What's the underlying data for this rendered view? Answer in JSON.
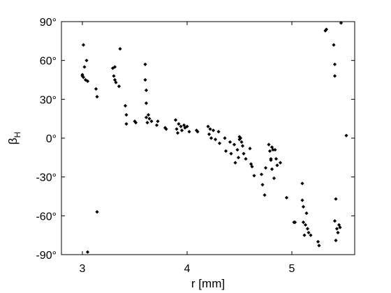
{
  "chart_data": {
    "type": "scatter",
    "title": "",
    "xlabel": "r [mm]",
    "ylabel": "β",
    "ylabel_subscript": "H",
    "xlim": [
      2.8,
      5.6
    ],
    "ylim": [
      -90,
      90
    ],
    "xticks": [
      3,
      4,
      5
    ],
    "xtick_labels": [
      "3",
      "4",
      "5"
    ],
    "yticks": [
      90,
      60,
      30,
      0,
      -30,
      -60,
      -90
    ],
    "ytick_labels": [
      "90°",
      "60°",
      "30°",
      "0°",
      "-30°",
      "-60°",
      "-90°"
    ],
    "grid": false,
    "marker": "diamond",
    "marker_color": "#000000",
    "series": [
      {
        "x": [
          3.0,
          3.0,
          3.01,
          3.01,
          3.02,
          3.03,
          3.04,
          3.05,
          3.13,
          3.14,
          3.14,
          3.05,
          3.29,
          3.3,
          3.31,
          3.31,
          3.32,
          3.35,
          3.36,
          3.41,
          3.42,
          3.42,
          3.5,
          3.51,
          3.6,
          3.6,
          3.61,
          3.61,
          3.61,
          3.62,
          3.63,
          3.64,
          3.66,
          3.71,
          3.72,
          3.79,
          3.8,
          3.89,
          3.9,
          3.91,
          3.92,
          3.94,
          3.95,
          3.97,
          3.98,
          4.0,
          4.02,
          4.09,
          4.1,
          4.2,
          4.21,
          4.22,
          4.23,
          4.25,
          4.27,
          4.3,
          4.31,
          4.36,
          4.37,
          4.41,
          4.42,
          4.45,
          4.46,
          4.48,
          4.49,
          4.5,
          4.5,
          4.51,
          4.52,
          4.53,
          4.54,
          4.56,
          4.6,
          4.61,
          4.62,
          4.64,
          4.71,
          4.72,
          4.74,
          4.75,
          4.78,
          4.79,
          4.8,
          4.8,
          4.81,
          4.81,
          4.82,
          4.83,
          4.84,
          4.85,
          4.86,
          4.89,
          4.95,
          5.02,
          5.03,
          5.1,
          5.1,
          5.11,
          5.11,
          5.12,
          5.13,
          5.14,
          5.15,
          5.16,
          5.18,
          5.25,
          5.26,
          5.32,
          5.33,
          5.4,
          5.41,
          5.41,
          5.42,
          5.43,
          5.44,
          5.45,
          5.46,
          5.41,
          5.42,
          5.47,
          5.52
        ],
        "y": [
          49,
          48,
          72,
          47,
          55,
          45,
          60,
          44,
          38,
          32,
          -57,
          -88,
          54,
          48,
          45,
          55,
          43,
          40,
          69,
          25,
          18,
          11,
          13,
          12,
          57,
          45,
          37,
          27,
          16,
          12,
          18,
          15,
          13,
          10,
          13,
          8,
          7,
          14,
          7,
          4,
          11,
          9,
          6,
          10,
          8,
          9,
          5,
          6,
          5,
          9,
          3,
          7,
          0,
          6,
          -1,
          5,
          -4,
          0,
          -10,
          -3,
          -12,
          -5,
          -19,
          -9,
          -15,
          1,
          -1,
          0,
          -3,
          -6,
          -12,
          -16,
          -8,
          -20,
          -22,
          -29,
          -28,
          -36,
          -44,
          -23,
          -5,
          -10,
          -16,
          -17,
          -7,
          -24,
          -9,
          -31,
          -9,
          -16,
          -21,
          -19,
          -46,
          -65,
          -65,
          -35,
          -48,
          -53,
          -65,
          -75,
          -67,
          -58,
          -70,
          -73,
          -75,
          -80,
          -83,
          83,
          84,
          72,
          57,
          48,
          -47,
          -70,
          -73,
          -67,
          -69,
          -64,
          -79,
          89,
          2
        ]
      }
    ]
  }
}
